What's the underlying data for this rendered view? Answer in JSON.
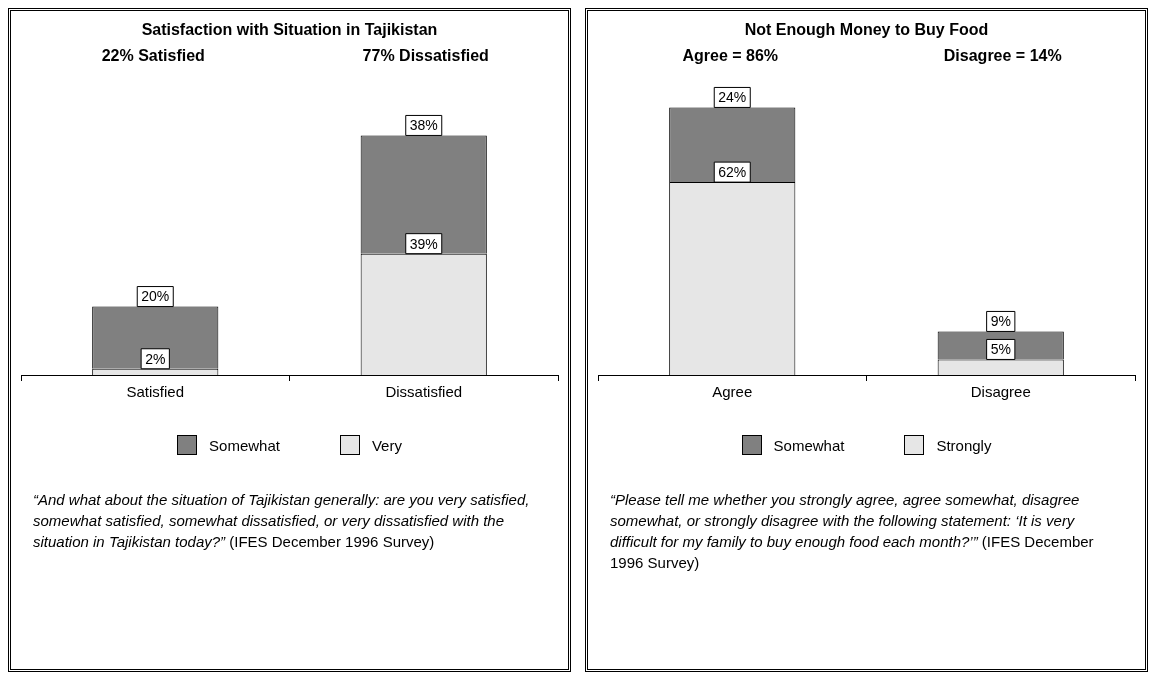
{
  "chart_data": [
    {
      "type": "bar",
      "title": "Satisfaction with Situation in Tajikistan",
      "categories": [
        "Satisfied",
        "Dissatisfied"
      ],
      "stacked": true,
      "legend": "bottom",
      "series": [
        {
          "name": "Very",
          "color": "#e6e6e6",
          "values": [
            2,
            39
          ],
          "value_labels": [
            "2%",
            "39%"
          ]
        },
        {
          "name": "Somewhat",
          "color": "#808080",
          "values": [
            20,
            38
          ],
          "value_labels": [
            "20%",
            "38%"
          ]
        }
      ],
      "annotations": [
        "22% Satisfied",
        "77% Dissatisfied",
        "“And what about the situation of Tajikistan generally: are you very satisfied, somewhat satisfied, somewhat dissatisfied, or very dissatisfied with the situation in Tajikistan today?”",
        "(IFES December 1996 Survey)"
      ]
    },
    {
      "type": "bar",
      "title": "Not Enough Money to Buy Food",
      "categories": [
        "Agree",
        "Disagree"
      ],
      "stacked": true,
      "legend": "bottom",
      "series": [
        {
          "name": "Strongly",
          "color": "#e6e6e6",
          "values": [
            62,
            5
          ],
          "value_labels": [
            "62%",
            "5%"
          ]
        },
        {
          "name": "Somewhat",
          "color": "#808080",
          "values": [
            24,
            9
          ],
          "value_labels": [
            "24%",
            "9%"
          ]
        }
      ],
      "annotations": [
        "Agree = 86%",
        "Disagree = 14%",
        "“Please tell me whether you strongly agree, agree somewhat, disagree somewhat, or strongly disagree with the following statement: ‘It is very difficult for my family to buy enough food each month?’”",
        "(IFES December 1996 Survey)"
      ]
    }
  ]
}
